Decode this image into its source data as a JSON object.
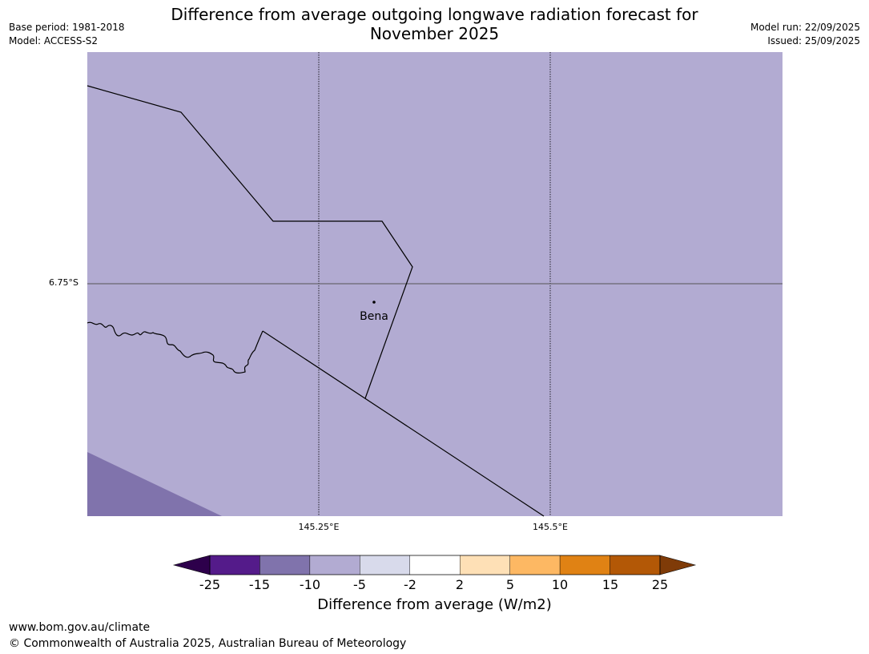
{
  "header": {
    "title_line1": "Difference from average outgoing longwave radiation forecast for",
    "title_line2": "November 2025",
    "base_period": "Base period: 1981-2018",
    "model": "Model: ACCESS-S2",
    "model_run": "Model run: 22/09/2025",
    "issued": "Issued: 25/09/2025"
  },
  "map": {
    "background_color": "#b2abd2",
    "low_zone_color": "#8073ac",
    "lat_label": "6.75°S",
    "lon_labels": [
      "145.25°E",
      "145.5°E"
    ],
    "place": {
      "name": "Bena"
    }
  },
  "colorbar": {
    "label": "Difference from average (W/m2)",
    "ticks": [
      "-25",
      "-15",
      "-10",
      "-5",
      "-2",
      "2",
      "5",
      "10",
      "15",
      "25"
    ],
    "colors": [
      "#541b8a",
      "#8073ac",
      "#b2abd2",
      "#d8daeb",
      "#ffffff",
      "#fee0b6",
      "#fdb863",
      "#e08214",
      "#b35806"
    ],
    "under_color": "#2d004b",
    "over_color": "#7f3b08"
  },
  "footer": {
    "url": "www.bom.gov.au/climate",
    "copyright": "© Commonwealth of Australia 2025, Australian Bureau of Meteorology"
  }
}
